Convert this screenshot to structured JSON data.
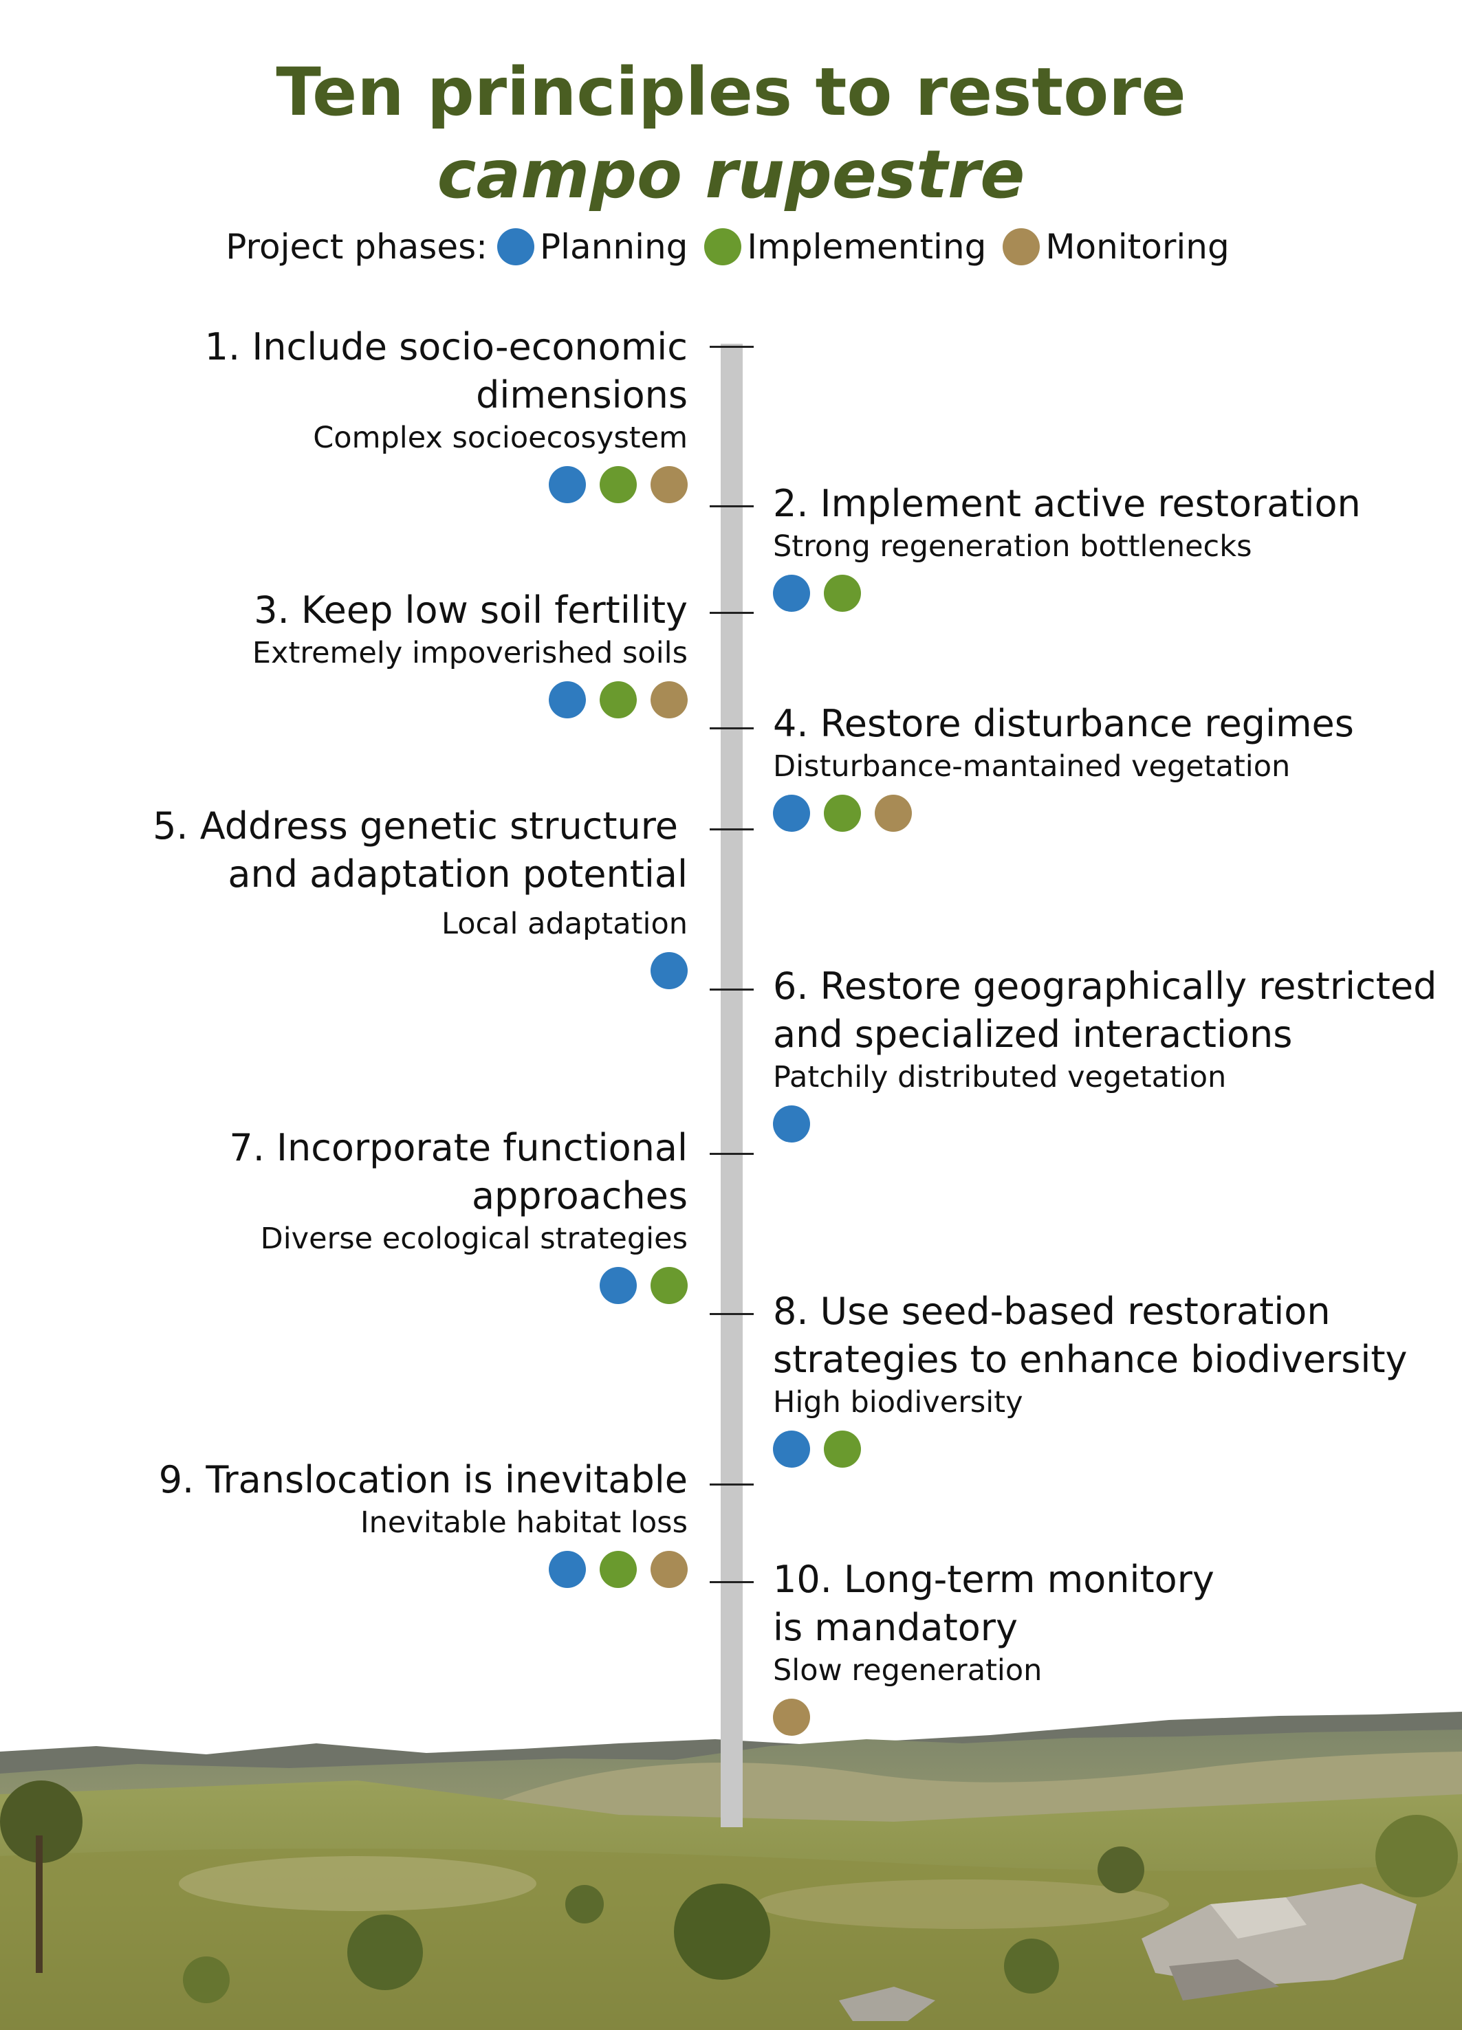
{
  "title": {
    "line1": "Ten principles to restore",
    "line2": "campo rupestre"
  },
  "legend": {
    "label": "Project phases:",
    "items": [
      {
        "label": "Planning",
        "color": "#2f7bbf"
      },
      {
        "label": "Implementing",
        "color": "#6a9a2e"
      },
      {
        "label": "Monitoring",
        "color": "#a88b55"
      }
    ]
  },
  "principles": [
    {
      "heading_lines": [
        "1.  Include socio-economic",
        "dimensions"
      ],
      "subtitle": "Complex socioecosystem",
      "phases": [
        "planning",
        "implementing",
        "monitoring"
      ]
    },
    {
      "heading_lines": [
        "2. Implement active restoration"
      ],
      "subtitle": "Strong regeneration bottlenecks",
      "phases": [
        "planning",
        "implementing"
      ]
    },
    {
      "heading_lines": [
        "3. Keep low soil fertility"
      ],
      "subtitle": "Extremely impoverished soils",
      "phases": [
        "planning",
        "implementing",
        "monitoring"
      ]
    },
    {
      "heading_lines": [
        "4. Restore disturbance regimes"
      ],
      "subtitle": "Disturbance-mantained vegetation",
      "phases": [
        "planning",
        "implementing",
        "monitoring"
      ]
    },
    {
      "heading_lines": [
        "5. Address genetic structure",
        "and adaptation potential"
      ],
      "subtitle": "Local adaptation",
      "phases": [
        "planning"
      ]
    },
    {
      "heading_lines": [
        "6. Restore geographically restricted",
        "and specialized interactions"
      ],
      "subtitle": "Patchily distributed vegetation",
      "phases": [
        "planning"
      ]
    },
    {
      "heading_lines": [
        "7. Incorporate functional",
        "approaches"
      ],
      "subtitle": "Diverse ecological strategies",
      "phases": [
        "planning",
        "implementing"
      ]
    },
    {
      "heading_lines": [
        "8. Use seed-based restoration",
        "strategies to enhance biodiversity"
      ],
      "subtitle": "High biodiversity",
      "phases": [
        "planning",
        "implementing"
      ]
    },
    {
      "heading_lines": [
        "9. Translocation is inevitable"
      ],
      "subtitle": "Inevitable habitat loss",
      "phases": [
        "planning",
        "implementing",
        "monitoring"
      ]
    },
    {
      "heading_lines": [
        "10. Long-term monitory",
        "is mandatory"
      ],
      "subtitle": "Slow regeneration",
      "phases": [
        "monitoring"
      ]
    }
  ]
}
